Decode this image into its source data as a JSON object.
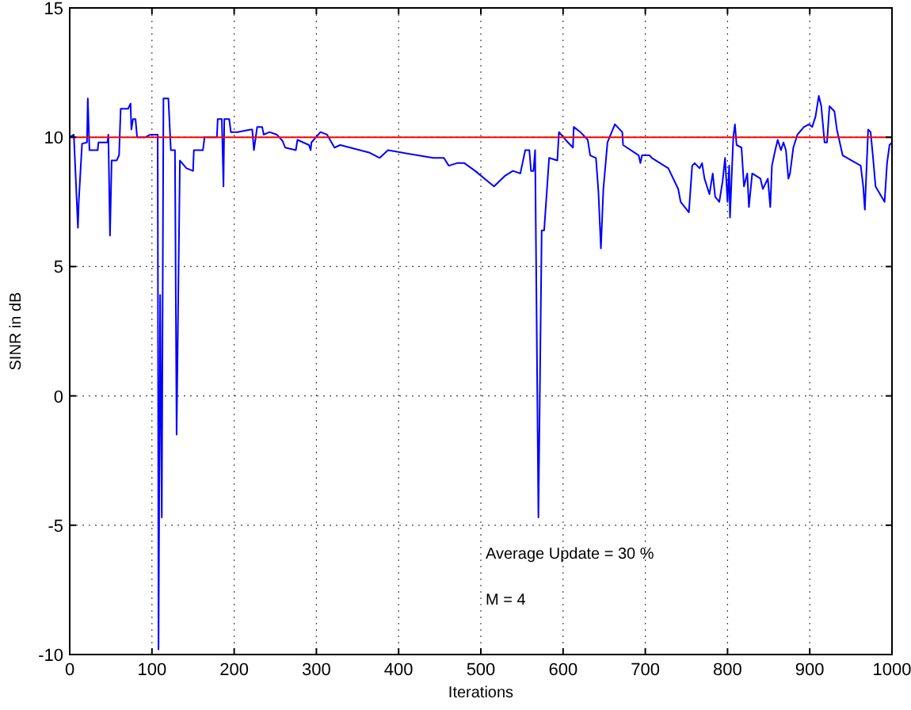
{
  "chart_data": {
    "type": "line",
    "xlabel": "Iterations",
    "ylabel": "SINR in dB",
    "xlim": [
      0,
      1000
    ],
    "ylim": [
      -10,
      15
    ],
    "xticks": [
      0,
      100,
      200,
      300,
      400,
      500,
      600,
      700,
      800,
      900,
      1000
    ],
    "yticks": [
      -10,
      -5,
      0,
      5,
      10,
      15
    ],
    "grid": true,
    "line_style": "solid",
    "marker": "none",
    "series": [
      {
        "color": "#0000ff",
        "x": [
          0,
          5,
          10,
          11,
          15,
          21,
          22,
          24,
          34,
          35,
          46,
          47,
          49,
          51,
          57,
          60,
          62,
          71,
          74,
          75,
          77,
          80,
          82,
          92,
          98,
          107,
          108,
          110,
          112,
          114,
          120,
          123,
          128,
          129,
          130,
          134,
          142,
          150,
          151,
          162,
          164,
          179,
          180,
          185,
          187,
          188,
          194,
          196,
          204,
          220,
          222,
          224,
          228,
          234,
          236,
          243,
          252,
          259,
          262,
          275,
          277,
          291,
          293,
          294,
          305,
          313,
          322,
          329,
          365,
          377,
          387,
          442,
          455,
          461,
          471,
          480,
          493,
          516,
          529,
          539,
          548,
          554,
          559,
          561,
          564,
          566,
          570,
          574,
          577,
          583,
          593,
          595,
          603,
          612,
          613,
          621,
          630,
          633,
          640,
          643,
          646,
          649,
          654,
          663,
          672,
          673,
          692,
          694,
          696,
          705,
          708,
          728,
          740,
          743,
          753,
          757,
          760,
          766,
          769,
          772,
          778,
          782,
          785,
          790,
          794,
          797,
          800,
          802,
          803,
          807,
          809,
          811,
          817,
          820,
          824,
          826,
          830,
          840,
          843,
          849,
          852,
          854,
          858,
          861,
          865,
          868,
          871,
          874,
          876,
          880,
          885,
          893,
          899,
          903,
          907,
          911,
          914,
          918,
          921,
          924,
          930,
          933,
          940,
          962,
          965,
          967,
          971,
          974,
          977,
          980,
          991,
          994,
          997,
          1000
        ],
        "values": [
          10,
          10.1,
          6.5,
          7.5,
          9.75,
          9.8,
          11.5,
          9.5,
          9.5,
          9.8,
          9.8,
          10.1,
          6.2,
          9.1,
          9.1,
          9.3,
          11.1,
          11.1,
          11.3,
          10.3,
          10.7,
          10.7,
          10,
          10,
          10.1,
          10.1,
          -9.8,
          3.9,
          -4.7,
          11.5,
          11.5,
          9.5,
          9.5,
          4,
          -1.5,
          9.1,
          8.8,
          8.7,
          9.5,
          9.5,
          10,
          10,
          10.7,
          10.7,
          8.1,
          10.7,
          10.7,
          10.2,
          10.2,
          10.3,
          10.3,
          9.5,
          10.4,
          10.4,
          10.1,
          10.2,
          10.1,
          9.85,
          9.6,
          9.5,
          9.9,
          9.7,
          9.5,
          9.8,
          10.2,
          10.1,
          9.6,
          9.7,
          9.4,
          9.2,
          9.5,
          9.2,
          9.2,
          8.9,
          9,
          9,
          8.7,
          8.1,
          8.5,
          8.7,
          8.6,
          9.5,
          9.5,
          8.7,
          8.7,
          9.5,
          -4.7,
          6.4,
          6.4,
          9.2,
          9.1,
          10.2,
          9.9,
          9.6,
          10.4,
          10.2,
          9.9,
          9.3,
          9.2,
          7.9,
          5.7,
          8,
          9.8,
          10.5,
          10.2,
          9.7,
          9.3,
          9,
          9.3,
          9.3,
          9.2,
          8.8,
          8,
          7.5,
          7.1,
          8.9,
          9,
          8.8,
          9,
          8.4,
          7.8,
          8.6,
          7.7,
          7.5,
          8.3,
          9.2,
          7.5,
          8.9,
          6.9,
          10,
          10.5,
          9.7,
          9.6,
          8.1,
          8.6,
          7.3,
          8.6,
          8.4,
          8,
          8.4,
          7.3,
          8.9,
          9.5,
          9.9,
          9.5,
          9.8,
          9.5,
          8.4,
          8.6,
          9.6,
          10.1,
          10.4,
          10.5,
          10.4,
          10.8,
          11.6,
          11.2,
          9.8,
          9.8,
          11.2,
          11,
          10.3,
          9.3,
          8.9,
          8.1,
          7.2,
          10.3,
          10.2,
          9.2,
          8.1,
          7.5,
          9,
          9.7,
          9.8
        ]
      }
    ],
    "ref_lines": [
      {
        "axis": "y",
        "value": 10,
        "color": "#ff0000",
        "line_style": "solid"
      }
    ],
    "annotations": [
      "Average Update = 30 %",
      "M = 4"
    ]
  }
}
